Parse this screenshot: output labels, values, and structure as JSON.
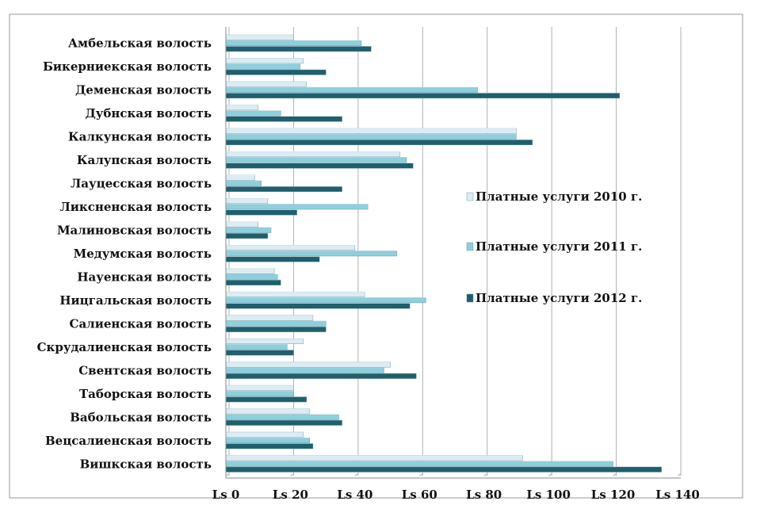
{
  "chart_data": {
    "type": "bar",
    "orientation": "horizontal",
    "categories": [
      "Амбельская волость",
      "Бикерниекская волость",
      "Деменская волость",
      "Дубнская волость",
      "Калкунская волость",
      "Калупская волость",
      "Лауцесская волость",
      "Ликсненская волость",
      "Малиновская волость",
      "Медумская волость",
      "Науенская волость",
      "Ницгальская волость",
      "Салиенская волость",
      "Скрудалиенская волость",
      "Свентская волость",
      "Таборская волость",
      "Вабольская волость",
      "Вецсалиенская волость",
      "Вишкская волость"
    ],
    "series": [
      {
        "name": "Платные услуги 2010 г.",
        "color": "#dcecf3",
        "values": [
          21,
          24,
          25,
          10,
          90,
          54,
          9,
          13,
          10,
          40,
          15,
          43,
          27,
          24,
          51,
          21,
          26,
          24,
          92
        ]
      },
      {
        "name": "Платные услуги 2011 г.",
        "color": "#8ecfdd",
        "values": [
          42,
          23,
          78,
          17,
          90,
          56,
          11,
          44,
          14,
          53,
          16,
          62,
          31,
          19,
          49,
          21,
          35,
          26,
          120
        ]
      },
      {
        "name": "Платные услуги 2012 г.",
        "color": "#1f5f6e",
        "values": [
          45,
          31,
          122,
          36,
          95,
          58,
          36,
          22,
          13,
          29,
          17,
          57,
          31,
          21,
          59,
          25,
          36,
          27,
          135
        ]
      }
    ],
    "xlim": [
      0,
      140
    ],
    "xticks": [
      0,
      20,
      40,
      60,
      80,
      100,
      120,
      140
    ],
    "xtick_labels": [
      "Ls 0",
      "Ls 20",
      "Ls 40",
      "Ls 60",
      "Ls 80",
      "Ls 100",
      "Ls 120",
      "Ls 140"
    ],
    "grid": "vertical",
    "legend": "right"
  }
}
